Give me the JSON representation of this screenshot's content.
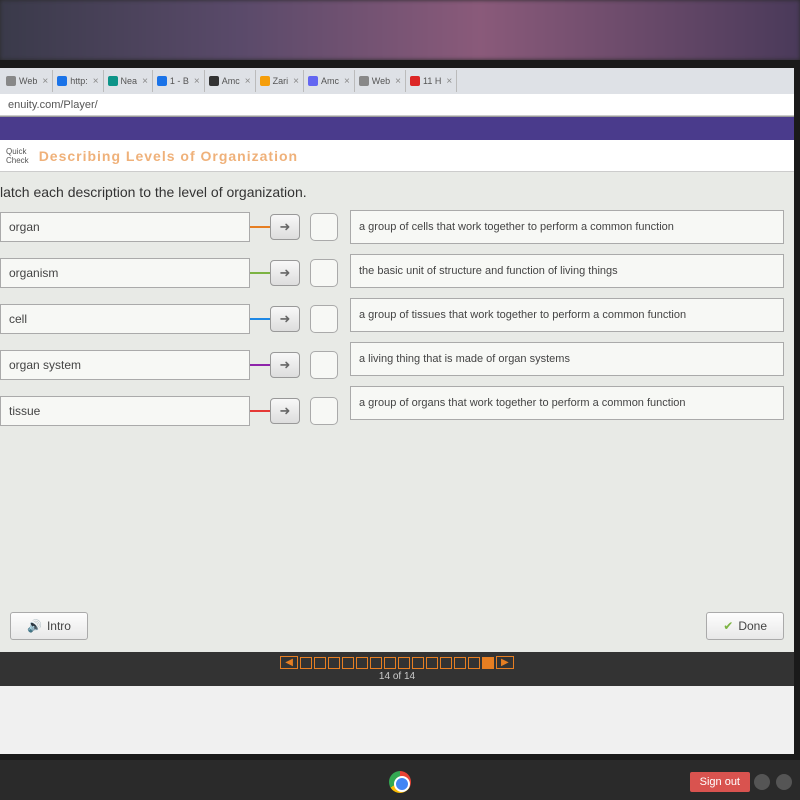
{
  "browser": {
    "tabs": [
      {
        "label": "Web",
        "icon_color": "#888888"
      },
      {
        "label": "http:",
        "icon_color": "#1a73e8"
      },
      {
        "label": "Nea",
        "icon_color": "#0d9488"
      },
      {
        "label": "1 - B",
        "icon_color": "#1a73e8"
      },
      {
        "label": "Amc",
        "icon_color": "#333333"
      },
      {
        "label": "Zari",
        "icon_color": "#f59e0b"
      },
      {
        "label": "Amc",
        "icon_color": "#6366f1"
      },
      {
        "label": "Web",
        "icon_color": "#888888"
      },
      {
        "label": "11 H",
        "icon_color": "#dc2626"
      }
    ],
    "url": "enuity.com/Player/"
  },
  "header": {
    "purple_bar_color": "#4a3b8c",
    "quick_check_line1": "Quick",
    "quick_check_line2": "Check",
    "lesson_title": "Describing Levels of Organization"
  },
  "activity": {
    "instruction": "latch each description to the level of organization.",
    "background_color": "#e8eae6",
    "terms": [
      {
        "label": "organ",
        "connector_color": "#e67e22"
      },
      {
        "label": "organism",
        "connector_color": "#7cb342"
      },
      {
        "label": "cell",
        "connector_color": "#1e88e5"
      },
      {
        "label": "organ system",
        "connector_color": "#8e24aa"
      },
      {
        "label": "tissue",
        "connector_color": "#e53935"
      }
    ],
    "definitions": [
      "a group of cells that work together to perform a common function",
      "the basic unit of structure and function of living things",
      "a group of tissues that work together to perform a common function",
      "a living thing that is made of organ systems",
      "a group of organs that work together to perform a common function"
    ],
    "buttons": {
      "intro": "Intro",
      "done": "Done"
    }
  },
  "progress": {
    "total": 14,
    "current": 14,
    "label": "14 of 14",
    "accent_color": "#e67e22"
  },
  "taskbar": {
    "signout": "Sign out"
  }
}
